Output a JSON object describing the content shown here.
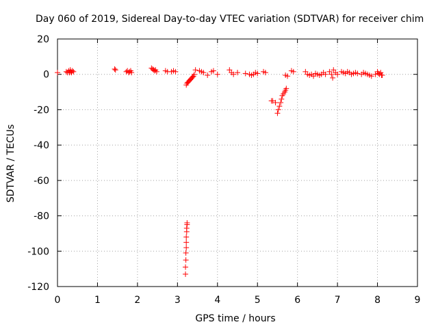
{
  "chart_data": {
    "type": "scatter",
    "title": "Day 060 of 2019, Sidereal Day-to-day VTEC variation (SDTVAR) for receiver chim",
    "xlabel": "GPS time / hours",
    "ylabel": "SDTVAR / TECUs",
    "xlim": [
      0,
      9
    ],
    "ylim": [
      -120,
      20
    ],
    "xticks": [
      0,
      1,
      2,
      3,
      4,
      5,
      6,
      7,
      8,
      9
    ],
    "yticks": [
      20,
      0,
      -20,
      -40,
      -60,
      -80,
      -100,
      -120
    ],
    "xtick_labels": [
      "0",
      "1",
      "2",
      "3",
      "4",
      "5",
      "6",
      "7",
      "8",
      "9"
    ],
    "ytick_labels": [
      "20",
      "0",
      "-20",
      "-40",
      "-60",
      "-80",
      "-100",
      "-120"
    ],
    "grid": true,
    "marker": "plus",
    "color": "#ff0000",
    "series": [
      {
        "name": "SDTVAR",
        "x": [
          0.0,
          0.22,
          0.25,
          0.28,
          0.3,
          0.32,
          0.33,
          0.35,
          0.37,
          0.4,
          1.43,
          1.45,
          1.72,
          1.75,
          1.78,
          1.8,
          1.83,
          1.85,
          2.35,
          2.38,
          2.4,
          2.43,
          2.45,
          2.48,
          2.7,
          2.75,
          2.85,
          2.9,
          2.95,
          3.22,
          3.24,
          3.26,
          3.28,
          3.3,
          3.32,
          3.34,
          3.36,
          3.38,
          3.4,
          3.42,
          3.2,
          3.2,
          3.21,
          3.21,
          3.22,
          3.22,
          3.22,
          3.23,
          3.23,
          3.24,
          3.24,
          3.45,
          3.55,
          3.6,
          3.65,
          3.75,
          3.85,
          3.9,
          4.0,
          4.3,
          4.35,
          4.4,
          4.5,
          4.7,
          4.8,
          4.85,
          4.9,
          4.95,
          5.0,
          5.15,
          5.2,
          5.35,
          5.38,
          5.45,
          5.5,
          5.52,
          5.55,
          5.58,
          5.6,
          5.62,
          5.65,
          5.68,
          5.7,
          5.72,
          5.7,
          5.75,
          5.85,
          5.9,
          6.2,
          6.25,
          6.3,
          6.35,
          6.4,
          6.45,
          6.5,
          6.55,
          6.6,
          6.65,
          6.7,
          6.8,
          6.85,
          6.88,
          6.9,
          6.95,
          7.0,
          7.1,
          7.15,
          7.2,
          7.25,
          7.3,
          7.35,
          7.4,
          7.45,
          7.5,
          7.6,
          7.65,
          7.7,
          7.75,
          7.8,
          7.85,
          7.95,
          8.0,
          8.02,
          8.05,
          8.08,
          8.1,
          8.12
        ],
        "y": [
          1,
          1.5,
          1,
          2,
          1,
          2.5,
          1.5,
          1,
          2,
          1.5,
          3,
          2.5,
          1.5,
          2,
          1,
          1.5,
          2,
          1,
          3.5,
          3,
          2.5,
          2,
          2.5,
          1.5,
          2,
          1.5,
          1.5,
          2,
          1.5,
          -6,
          -5,
          -4.5,
          -4,
          -3.5,
          -3,
          -2.5,
          -2,
          -1.5,
          -1,
          0,
          -113,
          -109,
          -105,
          -101,
          -98,
          -95,
          -92,
          -89,
          -87,
          -85,
          -84,
          2.5,
          2,
          1.5,
          1,
          -0.5,
          1.5,
          2,
          0,
          2.5,
          1,
          0,
          1,
          0.5,
          0,
          -0.5,
          0,
          1,
          0.5,
          1.5,
          1,
          -15,
          -15,
          -16,
          -22,
          -20,
          -18,
          -16,
          -14,
          -12,
          -11,
          -10,
          -9,
          -8,
          -0.5,
          -1,
          2,
          1.5,
          1.5,
          0,
          -0.5,
          0,
          -1,
          0.5,
          0,
          -0.5,
          0,
          1,
          0,
          1.5,
          0,
          -2,
          2.5,
          1,
          0,
          1.5,
          1,
          0.5,
          1.5,
          1,
          0,
          0.5,
          1,
          0.5,
          0,
          1,
          0.5,
          0,
          -0.5,
          -1,
          0,
          1.5,
          0.5,
          0,
          1,
          -0.5,
          -0.5
        ]
      }
    ]
  }
}
